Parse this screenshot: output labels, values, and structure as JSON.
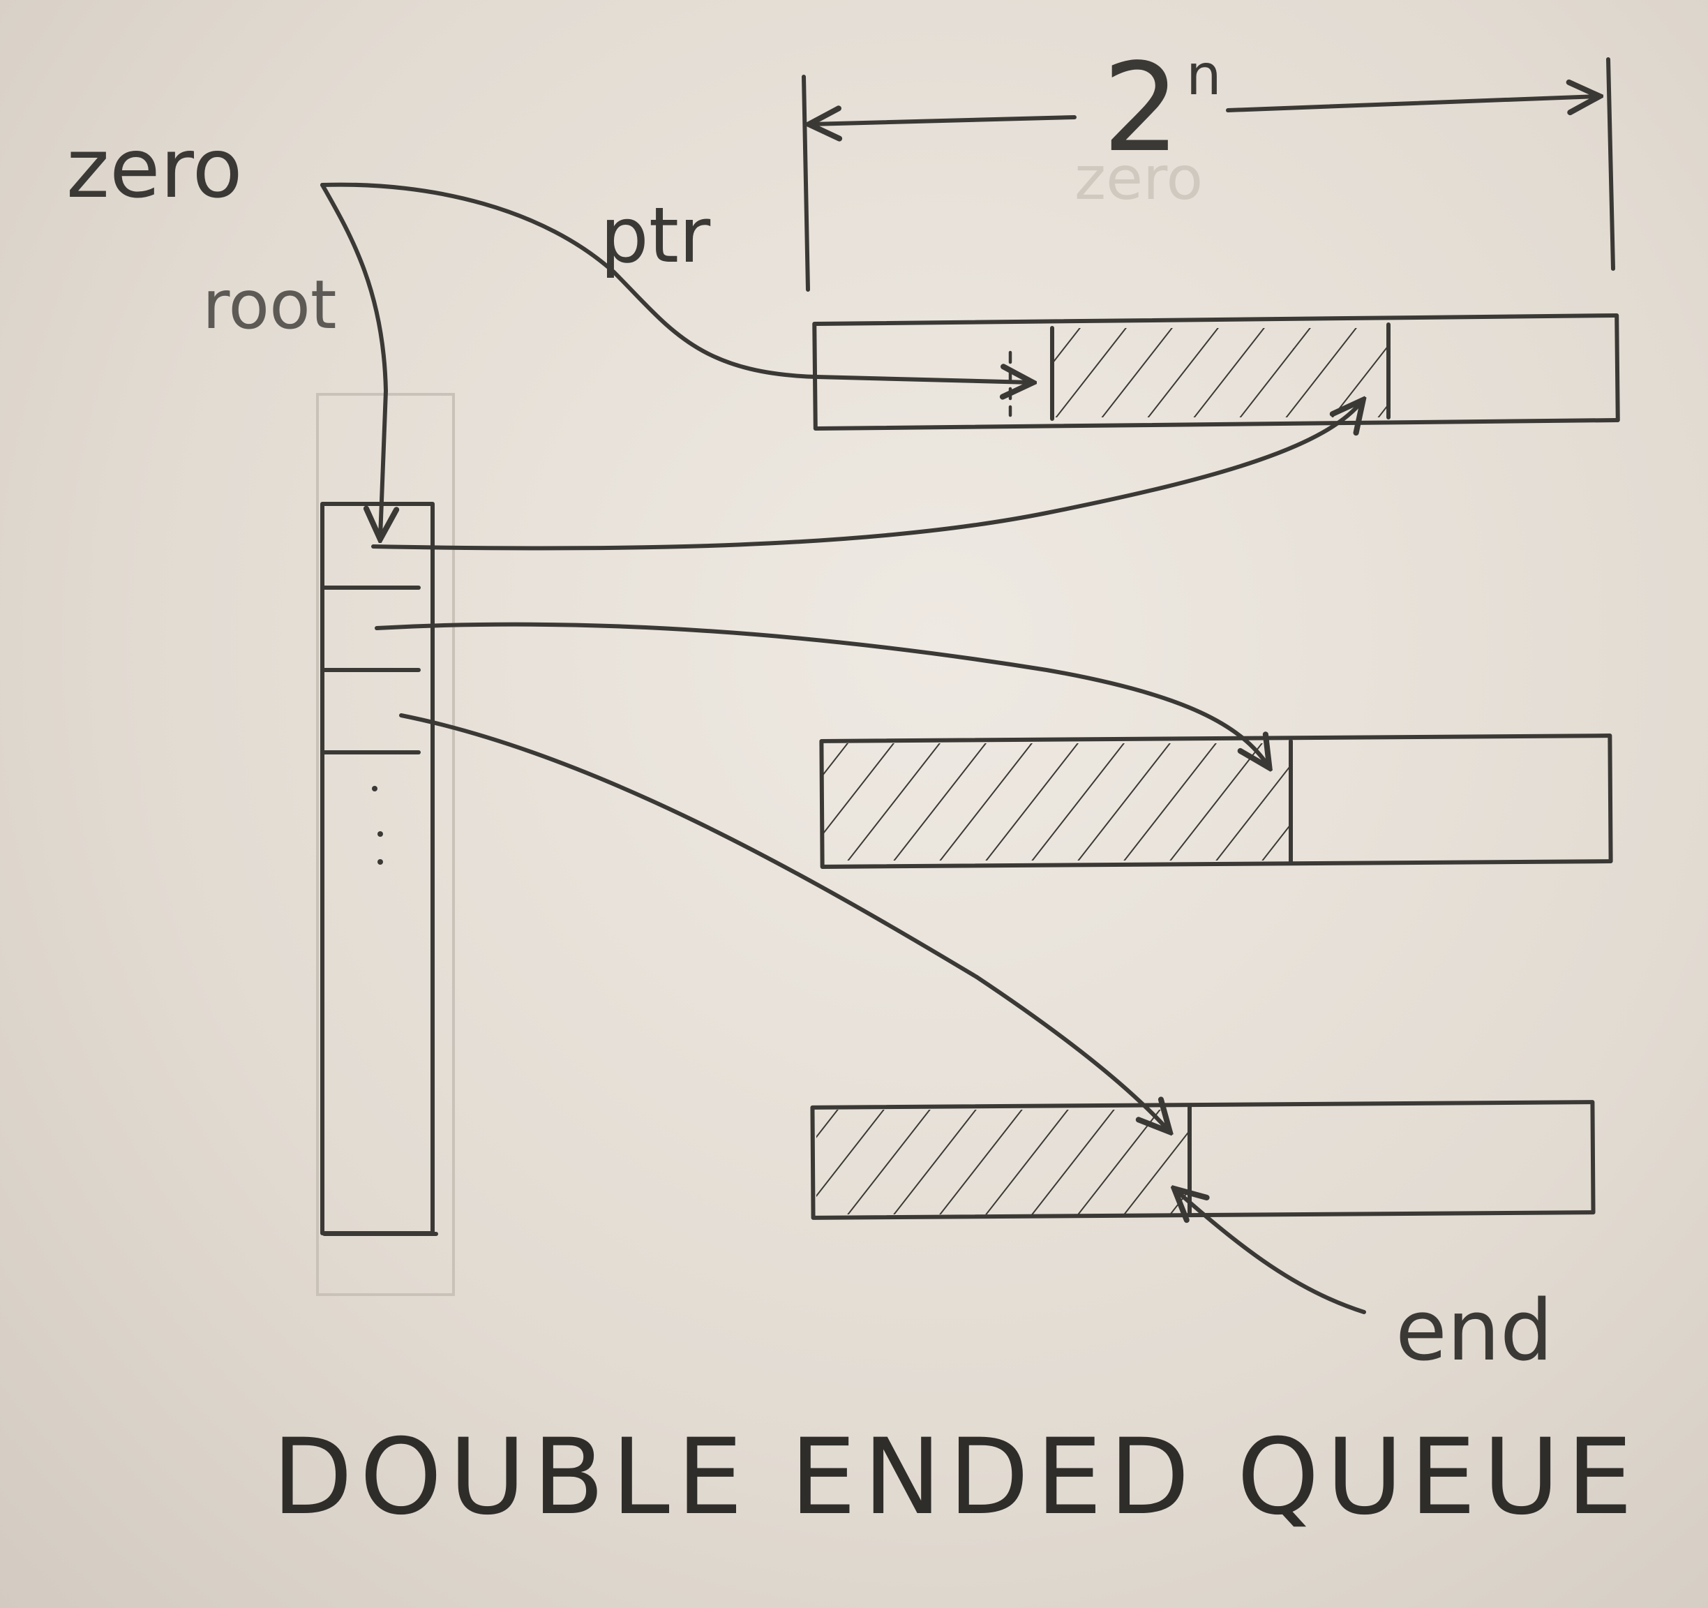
{
  "labels": {
    "zero": "zero",
    "root": "root",
    "ptr": "ptr",
    "size_base": "2",
    "size_exp": "n",
    "end": "end",
    "title": "DOUBLE ENDED QUEUE"
  },
  "colors": {
    "pencil": "#3b3935",
    "paper": "#e8e2da"
  }
}
